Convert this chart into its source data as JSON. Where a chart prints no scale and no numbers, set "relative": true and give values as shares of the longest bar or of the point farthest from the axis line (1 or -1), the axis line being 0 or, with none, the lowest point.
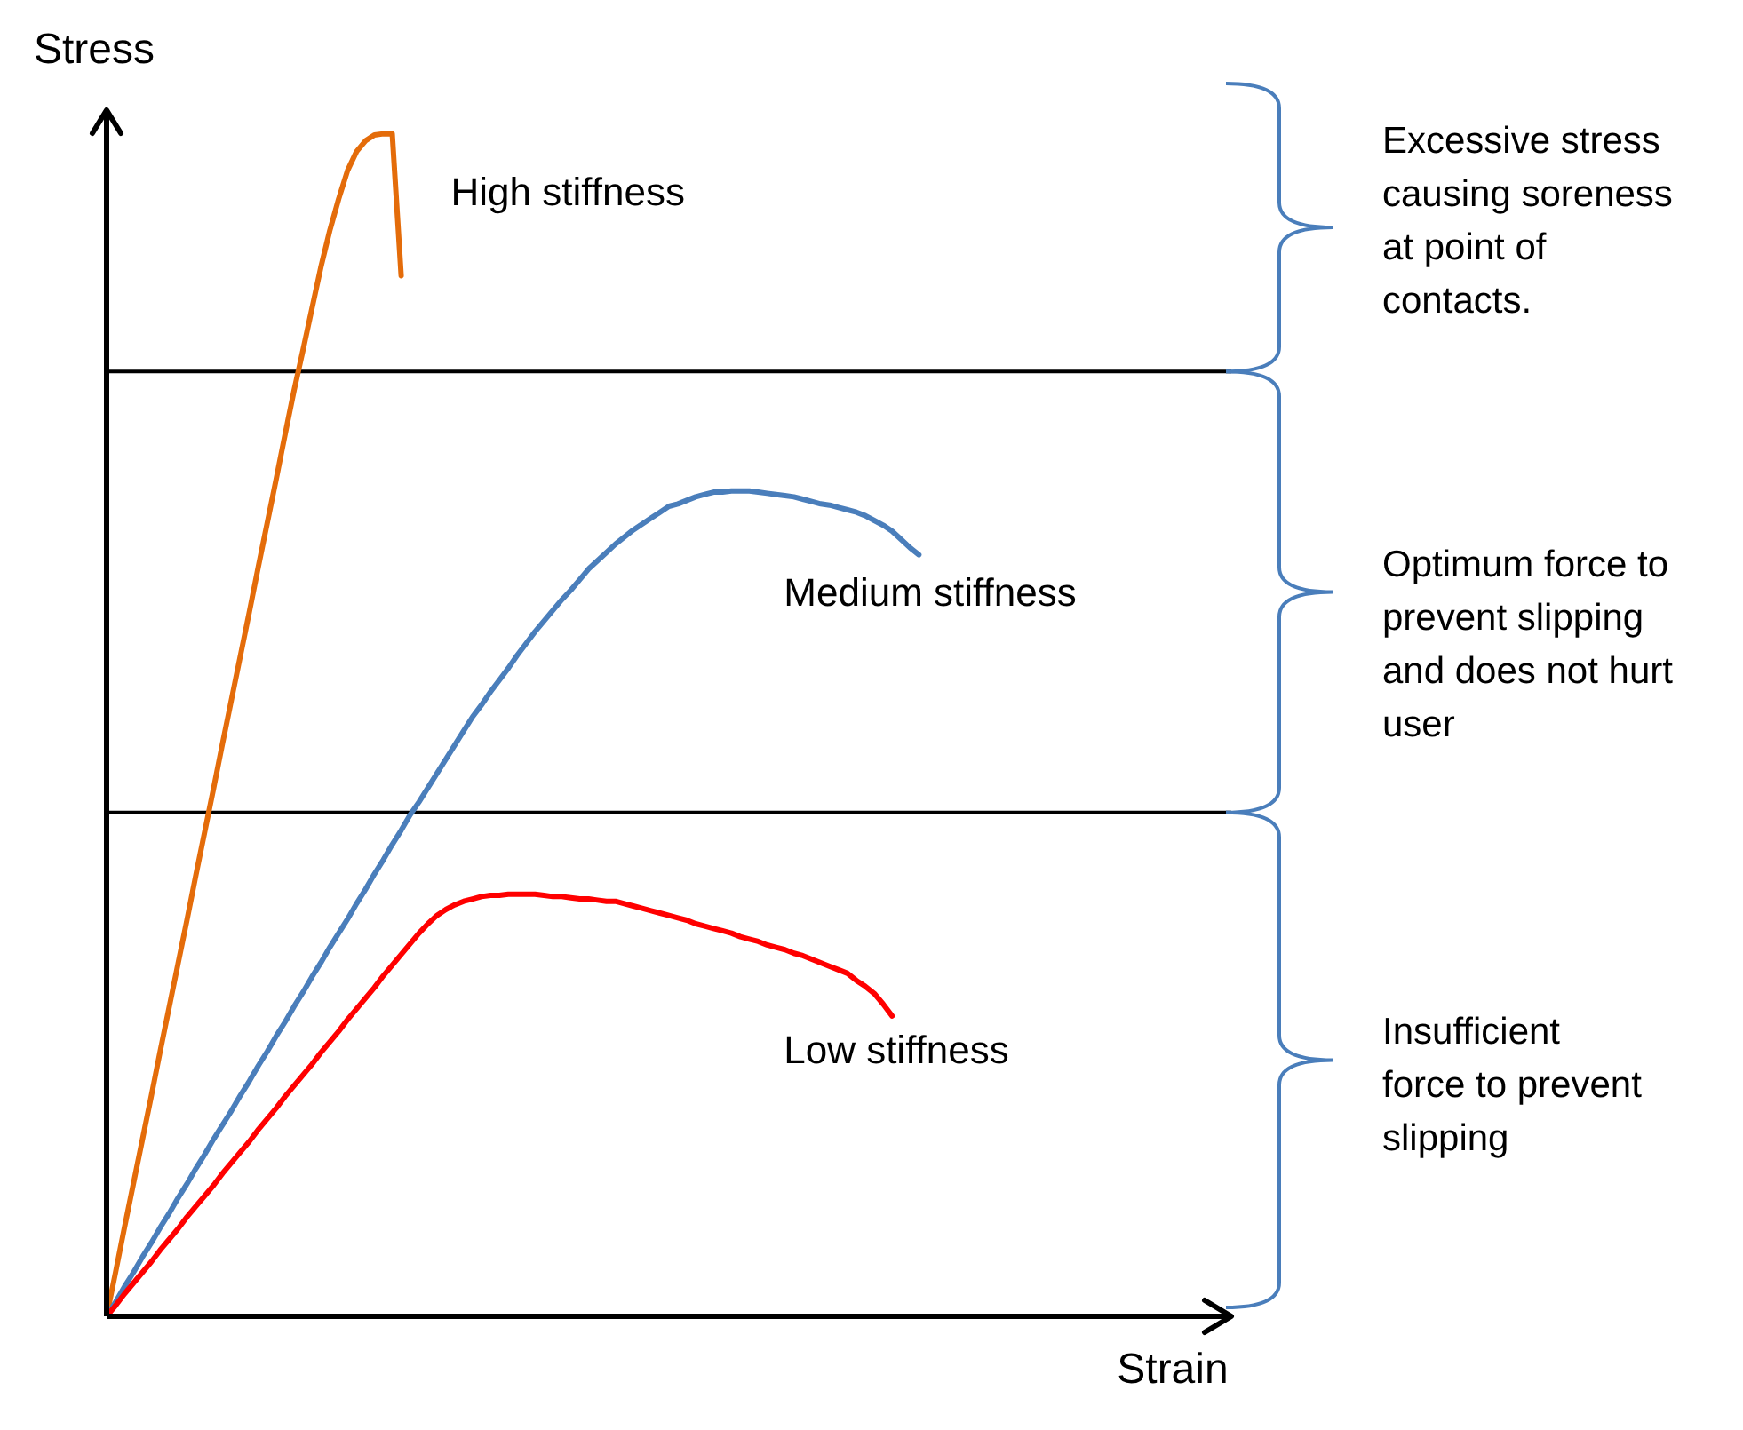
{
  "chart_data": {
    "type": "line",
    "xlabel": "Strain",
    "ylabel": "Stress",
    "relative": true,
    "line_style": "solid",
    "categories": [
      null,
      null,
      null,
      null,
      null,
      null,
      null,
      null,
      null,
      null,
      null,
      null,
      null,
      null,
      null,
      null,
      null,
      null,
      null,
      null,
      null,
      null,
      null,
      null,
      null,
      null,
      null,
      null,
      null,
      null,
      null,
      null,
      null,
      null,
      null,
      null,
      null,
      null,
      null,
      null,
      null,
      null,
      null,
      null,
      null,
      null,
      null,
      null,
      null,
      null,
      null,
      null,
      null,
      null,
      null,
      null,
      null,
      null,
      null,
      null,
      null,
      null,
      null,
      null,
      null,
      null,
      null,
      null,
      null,
      null,
      null,
      null,
      null,
      null,
      null,
      null,
      null,
      null,
      null,
      null,
      null,
      null,
      null,
      null,
      null,
      null,
      null,
      null,
      null,
      null,
      null,
      null,
      null,
      null,
      null,
      null,
      null,
      null,
      null,
      null,
      null,
      null,
      null,
      null,
      null,
      null,
      null,
      null,
      null,
      null,
      null,
      null,
      null,
      null,
      null,
      null,
      null,
      null,
      null,
      null,
      null,
      null,
      null,
      null,
      null,
      null,
      null
    ],
    "series": [
      {
        "name": "High stiffness",
        "color": "#e46c0a",
        "values": [
          0,
          0.037,
          0.075,
          0.112,
          0.149,
          0.186,
          0.224,
          0.261,
          0.298,
          0.335,
          0.373,
          0.41,
          0.447,
          0.485,
          0.522,
          0.559,
          0.596,
          0.634,
          0.671,
          0.708,
          0.746,
          0.783,
          0.817,
          0.852,
          0.887,
          0.918,
          0.945,
          0.969,
          0.985,
          0.994,
          0.999,
          1.0,
          1.0,
          0.88,
          null,
          null,
          null,
          null,
          null,
          null,
          null,
          null,
          null,
          null,
          null,
          null,
          null,
          null,
          null,
          null,
          null,
          null,
          null,
          null,
          null,
          null,
          null,
          null,
          null,
          null,
          null,
          null,
          null,
          null,
          null,
          null,
          null,
          null,
          null,
          null,
          null,
          null,
          null,
          null,
          null,
          null,
          null,
          null,
          null,
          null,
          null,
          null,
          null,
          null,
          null,
          null,
          null,
          null,
          null,
          null,
          null,
          null,
          null,
          null,
          null,
          null,
          null,
          null,
          null,
          null,
          null,
          null,
          null,
          null,
          null,
          null,
          null,
          null,
          null,
          null,
          null,
          null,
          null,
          null,
          null,
          null,
          null,
          null,
          null,
          null,
          null,
          null,
          null,
          null,
          null,
          null,
          null
        ]
      },
      {
        "name": "Medium stiffness",
        "color": "#4a7ebb",
        "values": [
          0,
          0.012,
          0.025,
          0.037,
          0.05,
          0.062,
          0.075,
          0.087,
          0.1,
          0.112,
          0.125,
          0.137,
          0.15,
          0.162,
          0.174,
          0.187,
          0.199,
          0.212,
          0.224,
          0.237,
          0.249,
          0.262,
          0.274,
          0.287,
          0.299,
          0.312,
          0.324,
          0.336,
          0.349,
          0.361,
          0.374,
          0.386,
          0.399,
          0.411,
          0.424,
          0.435,
          0.447,
          0.459,
          0.471,
          0.483,
          0.495,
          0.507,
          0.517,
          0.528,
          0.538,
          0.548,
          0.559,
          0.569,
          0.579,
          0.588,
          0.597,
          0.606,
          0.614,
          0.623,
          0.632,
          0.639,
          0.646,
          0.653,
          0.659,
          0.665,
          0.67,
          0.675,
          0.68,
          0.685,
          0.687,
          0.69,
          0.693,
          0.695,
          0.697,
          0.697,
          0.698,
          0.698,
          0.698,
          0.697,
          0.696,
          0.695,
          0.694,
          0.693,
          0.691,
          0.689,
          0.687,
          0.686,
          0.684,
          0.682,
          0.68,
          0.677,
          0.673,
          0.669,
          0.664,
          0.657,
          0.65,
          0.644,
          null,
          null,
          null,
          null,
          null,
          null,
          null,
          null,
          null,
          null,
          null,
          null,
          null,
          null,
          null,
          null,
          null,
          null,
          null,
          null,
          null,
          null,
          null,
          null,
          null,
          null,
          null,
          null,
          null,
          null,
          null,
          null,
          null,
          null,
          null
        ]
      },
      {
        "name": "Low stiffness",
        "color": "#ff0000",
        "values": [
          0,
          0.009,
          0.019,
          0.028,
          0.037,
          0.046,
          0.056,
          0.065,
          0.074,
          0.084,
          0.093,
          0.102,
          0.111,
          0.121,
          0.13,
          0.139,
          0.148,
          0.158,
          0.167,
          0.176,
          0.186,
          0.195,
          0.204,
          0.213,
          0.223,
          0.232,
          0.241,
          0.251,
          0.26,
          0.269,
          0.278,
          0.288,
          0.297,
          0.306,
          0.315,
          0.324,
          0.332,
          0.339,
          0.344,
          0.348,
          0.351,
          0.353,
          0.355,
          0.356,
          0.356,
          0.357,
          0.357,
          0.357,
          0.357,
          0.356,
          0.355,
          0.355,
          0.354,
          0.353,
          0.353,
          0.352,
          0.351,
          0.351,
          0.349,
          0.347,
          0.345,
          0.343,
          0.341,
          0.339,
          0.337,
          0.335,
          0.332,
          0.33,
          0.328,
          0.326,
          0.324,
          0.321,
          0.319,
          0.317,
          0.314,
          0.312,
          0.31,
          0.307,
          0.305,
          0.302,
          0.299,
          0.296,
          0.293,
          0.29,
          0.284,
          0.279,
          0.273,
          0.264,
          0.254,
          null,
          null,
          null,
          null,
          null,
          null,
          null,
          null,
          null,
          null,
          null,
          null,
          null,
          null,
          null,
          null,
          null,
          null,
          null,
          null,
          null,
          null,
          null,
          null,
          null,
          null,
          null,
          null,
          null,
          null,
          null,
          null,
          null,
          null,
          null,
          null,
          null,
          null
        ]
      }
    ],
    "ref_lines": [
      {
        "axis": "y",
        "value": 0.426,
        "color": "#000000"
      },
      {
        "axis": "y",
        "value": 0.799,
        "color": "#000000"
      }
    ],
    "annotations": [
      "Excessive stress\ncausing soreness\nat point of\ncontacts.",
      "Optimum force to\nprevent slipping\nand does not hurt\nuser",
      "Insufficient\nforce to prevent\nslipping"
    ]
  }
}
